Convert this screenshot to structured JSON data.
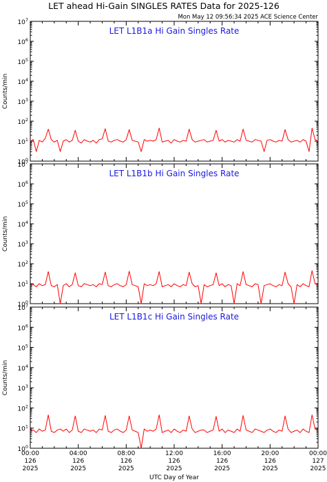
{
  "figure": {
    "title": "LET ahead Hi-Gain SINGLES RATES Data for 2025-126",
    "timestamp": "Mon May 12 09:56:34 2025 ACE Science Center",
    "xlabel": "UTC Day of Year",
    "ylabel": "Counts/min"
  },
  "colors": {
    "series": "#ff0000",
    "panel_title": "#1a1adf",
    "axes": "#000000"
  },
  "x_ticks": [
    {
      "time": "00:00",
      "day": "126",
      "year": "2025"
    },
    {
      "time": "04:00",
      "day": "126",
      "year": "2025"
    },
    {
      "time": "08:00",
      "day": "126",
      "year": "2025"
    },
    {
      "time": "12:00",
      "day": "126",
      "year": "2025"
    },
    {
      "time": "16:00",
      "day": "126",
      "year": "2025"
    },
    {
      "time": "20:00",
      "day": "126",
      "year": "2025"
    },
    {
      "time": "00:00",
      "day": "127",
      "year": "2025"
    }
  ],
  "y_ticks": [
    {
      "base": "10",
      "exp": "7"
    },
    {
      "base": "10",
      "exp": "6"
    },
    {
      "base": "10",
      "exp": "5"
    },
    {
      "base": "10",
      "exp": "4"
    },
    {
      "base": "10",
      "exp": "3"
    },
    {
      "base": "10",
      "exp": "2"
    },
    {
      "base": "10",
      "exp": "1"
    },
    {
      "base": "10",
      "exp": "0"
    }
  ],
  "chart_data": [
    {
      "type": "line",
      "title": "LET L1B1a Hi Gain Singles Rate",
      "xlabel": "UTC Day of Year",
      "ylabel": "Counts/min",
      "y_scale": "log",
      "ylim": [
        1,
        10000000
      ],
      "xlim_hours": [
        0,
        24
      ],
      "grid": false,
      "series": [
        {
          "x_hours": [
            0,
            0.25,
            0.5,
            0.75,
            1.0,
            1.25,
            1.5,
            1.75,
            2.0,
            2.25,
            2.5,
            2.75,
            3.0,
            3.25,
            3.5,
            3.75,
            4.0,
            4.25,
            4.5,
            4.75,
            5.0,
            5.25,
            5.5,
            5.75,
            6.0,
            6.25,
            6.5,
            6.75,
            7.0,
            7.25,
            7.5,
            7.75,
            8.0,
            8.25,
            8.5,
            8.75,
            9.0,
            9.25,
            9.5,
            9.75,
            10.0,
            10.25,
            10.5,
            10.75,
            11.0,
            11.25,
            11.5,
            11.75,
            12.0,
            12.25,
            12.5,
            12.75,
            13.0,
            13.25,
            13.5,
            13.75,
            14.0,
            14.25,
            14.5,
            14.75,
            15.0,
            15.25,
            15.5,
            15.75,
            16.0,
            16.25,
            16.5,
            16.75,
            17.0,
            17.25,
            17.5,
            17.75,
            18.0,
            18.25,
            18.5,
            18.75,
            19.0,
            19.25,
            19.5,
            19.75,
            20.0,
            20.25,
            20.5,
            20.75,
            21.0,
            21.25,
            21.5,
            21.75,
            22.0,
            22.25,
            22.5,
            22.75,
            23.0,
            23.25,
            23.5,
            23.75,
            24.0
          ],
          "values": [
            10,
            12,
            3,
            11,
            9,
            14,
            40,
            12,
            9,
            11,
            3,
            10,
            12,
            9,
            11,
            35,
            10,
            8,
            12,
            10,
            9,
            11,
            8,
            12,
            13,
            42,
            10,
            9,
            11,
            12,
            10,
            9,
            12,
            38,
            11,
            10,
            9,
            3,
            12,
            10,
            11,
            10,
            12,
            45,
            9,
            10,
            11,
            8,
            12,
            10,
            9,
            11,
            10,
            40,
            12,
            9,
            10,
            11,
            12,
            9,
            10,
            11,
            35,
            10,
            12,
            9,
            11,
            10,
            9,
            12,
            10,
            40,
            11,
            10,
            9,
            12,
            11,
            10,
            3,
            11,
            12,
            10,
            9,
            11,
            10,
            38,
            12,
            9,
            10,
            11,
            9,
            12,
            10,
            3,
            45,
            12,
            10
          ]
        }
      ]
    },
    {
      "type": "line",
      "title": "LET L1B1b Hi Gain Singles Rate",
      "xlabel": "UTC Day of Year",
      "ylabel": "Counts/min",
      "y_scale": "log",
      "ylim": [
        1,
        10000000
      ],
      "xlim_hours": [
        0,
        24
      ],
      "grid": false,
      "series": [
        {
          "x_hours": [
            0,
            0.25,
            0.5,
            0.75,
            1.0,
            1.25,
            1.5,
            1.75,
            2.0,
            2.25,
            2.5,
            2.75,
            3.0,
            3.25,
            3.5,
            3.75,
            4.0,
            4.25,
            4.5,
            4.75,
            5.0,
            5.25,
            5.5,
            5.75,
            6.0,
            6.25,
            6.5,
            6.75,
            7.0,
            7.25,
            7.5,
            7.75,
            8.0,
            8.25,
            8.5,
            8.75,
            9.0,
            9.25,
            9.5,
            9.75,
            10.0,
            10.25,
            10.5,
            10.75,
            11.0,
            11.25,
            11.5,
            11.75,
            12.0,
            12.25,
            12.5,
            12.75,
            13.0,
            13.25,
            13.5,
            13.75,
            14.0,
            14.25,
            14.5,
            14.75,
            15.0,
            15.25,
            15.5,
            15.75,
            16.0,
            16.25,
            16.5,
            16.75,
            17.0,
            17.25,
            17.5,
            17.75,
            18.0,
            18.25,
            18.5,
            18.75,
            19.0,
            19.25,
            19.5,
            19.75,
            20.0,
            20.25,
            20.5,
            20.75,
            21.0,
            21.25,
            21.5,
            21.75,
            22.0,
            22.25,
            22.5,
            22.75,
            23.0,
            23.25,
            23.5,
            23.75,
            24.0
          ],
          "values": [
            8,
            9,
            7,
            10,
            8,
            9,
            40,
            8,
            7,
            9,
            1,
            8,
            10,
            7,
            9,
            35,
            8,
            7,
            10,
            9,
            8,
            9,
            7,
            10,
            9,
            38,
            8,
            7,
            9,
            10,
            8,
            7,
            9,
            42,
            9,
            8,
            7,
            1,
            10,
            8,
            9,
            8,
            10,
            40,
            7,
            8,
            9,
            7,
            10,
            8,
            7,
            9,
            8,
            38,
            10,
            7,
            8,
            1,
            9,
            7,
            8,
            9,
            35,
            8,
            10,
            7,
            9,
            8,
            1,
            10,
            8,
            40,
            9,
            8,
            7,
            10,
            9,
            1,
            8,
            9,
            10,
            8,
            7,
            9,
            8,
            38,
            10,
            7,
            1,
            9,
            7,
            10,
            8,
            7,
            45,
            10,
            9
          ]
        }
      ]
    },
    {
      "type": "line",
      "title": "LET L1B1c Hi Gain Singles Rate",
      "xlabel": "UTC Day of Year",
      "ylabel": "Counts/min",
      "y_scale": "log",
      "ylim": [
        1,
        10000000
      ],
      "xlim_hours": [
        0,
        24
      ],
      "grid": false,
      "series": [
        {
          "x_hours": [
            0,
            0.25,
            0.5,
            0.75,
            1.0,
            1.25,
            1.5,
            1.75,
            2.0,
            2.25,
            2.5,
            2.75,
            3.0,
            3.25,
            3.5,
            3.75,
            4.0,
            4.25,
            4.5,
            4.75,
            5.0,
            5.25,
            5.5,
            5.75,
            6.0,
            6.25,
            6.5,
            6.75,
            7.0,
            7.25,
            7.5,
            7.75,
            8.0,
            8.25,
            8.5,
            8.75,
            9.0,
            9.25,
            9.5,
            9.75,
            10.0,
            10.25,
            10.5,
            10.75,
            11.0,
            11.25,
            11.5,
            11.75,
            12.0,
            12.25,
            12.5,
            12.75,
            13.0,
            13.25,
            13.5,
            13.75,
            14.0,
            14.25,
            14.5,
            14.75,
            15.0,
            15.25,
            15.5,
            15.75,
            16.0,
            16.25,
            16.5,
            16.75,
            17.0,
            17.25,
            17.5,
            17.75,
            18.0,
            18.25,
            18.5,
            18.75,
            19.0,
            19.25,
            19.5,
            19.75,
            20.0,
            20.25,
            20.5,
            20.75,
            21.0,
            21.25,
            21.5,
            21.75,
            22.0,
            22.25,
            22.5,
            22.75,
            23.0,
            23.25,
            23.5,
            23.75,
            24.0
          ],
          "values": [
            7,
            8,
            6,
            9,
            7,
            8,
            45,
            7,
            6,
            8,
            9,
            7,
            9,
            6,
            8,
            40,
            7,
            6,
            9,
            8,
            7,
            8,
            6,
            9,
            8,
            42,
            7,
            6,
            8,
            9,
            7,
            6,
            8,
            40,
            8,
            7,
            6,
            1,
            9,
            7,
            8,
            7,
            9,
            45,
            6,
            7,
            8,
            6,
            9,
            7,
            6,
            8,
            7,
            40,
            9,
            6,
            7,
            8,
            8,
            6,
            7,
            8,
            38,
            7,
            9,
            6,
            8,
            7,
            6,
            9,
            7,
            42,
            8,
            7,
            6,
            9,
            8,
            7,
            6,
            8,
            9,
            7,
            6,
            8,
            7,
            40,
            9,
            6,
            7,
            8,
            6,
            9,
            7,
            6,
            45,
            9,
            8
          ]
        }
      ]
    }
  ]
}
